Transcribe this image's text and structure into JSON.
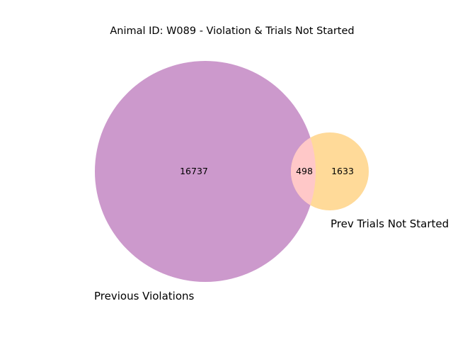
{
  "title": "Animal ID: W089 - Violation & Trials Not Started",
  "sets": [
    {
      "name": "Previous Violations",
      "color": "#cc99cc"
    },
    {
      "name": "Prev Trials Not Started",
      "color": "#ffda99"
    }
  ],
  "regions": {
    "only_a": "16737",
    "intersection": "498",
    "only_b": "1633"
  },
  "intersection_color": "#ffc8c8"
}
